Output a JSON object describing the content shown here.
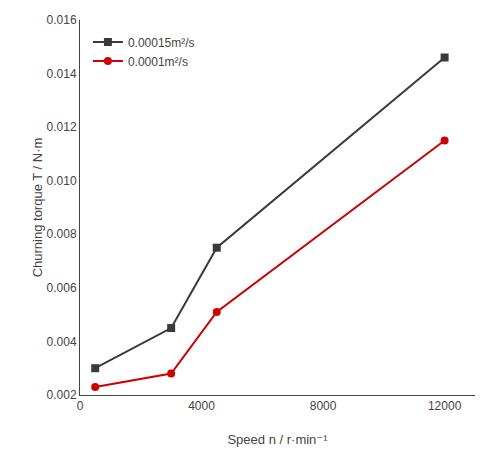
{
  "chart_data": {
    "type": "line",
    "x_label": "Speed n / r·min⁻¹",
    "y_label": "Churning torque T / N·m",
    "series": [
      {
        "name": "0.00015m²/s",
        "color": "#3a3a3a",
        "marker": "square",
        "x": [
          500,
          3000,
          4500,
          12000
        ],
        "values": [
          0.003,
          0.0045,
          0.0075,
          0.0146
        ]
      },
      {
        "name": "0.0001m²/s",
        "color": "#cc0000",
        "marker": "circle",
        "x": [
          500,
          3000,
          4500,
          12000
        ],
        "values": [
          0.0023,
          0.0028,
          0.0051,
          0.0115
        ]
      }
    ],
    "xlim": [
      0,
      13000
    ],
    "ylim": [
      0.002,
      0.016
    ],
    "xticks": [
      0,
      4000,
      8000,
      12000
    ],
    "yticks": [
      0.002,
      0.004,
      0.006,
      0.008,
      {
        "value": 0.01,
        "label": "0.010"
      },
      0.012,
      0.014,
      0.016
    ],
    "grid": false,
    "legend": "upper left"
  }
}
